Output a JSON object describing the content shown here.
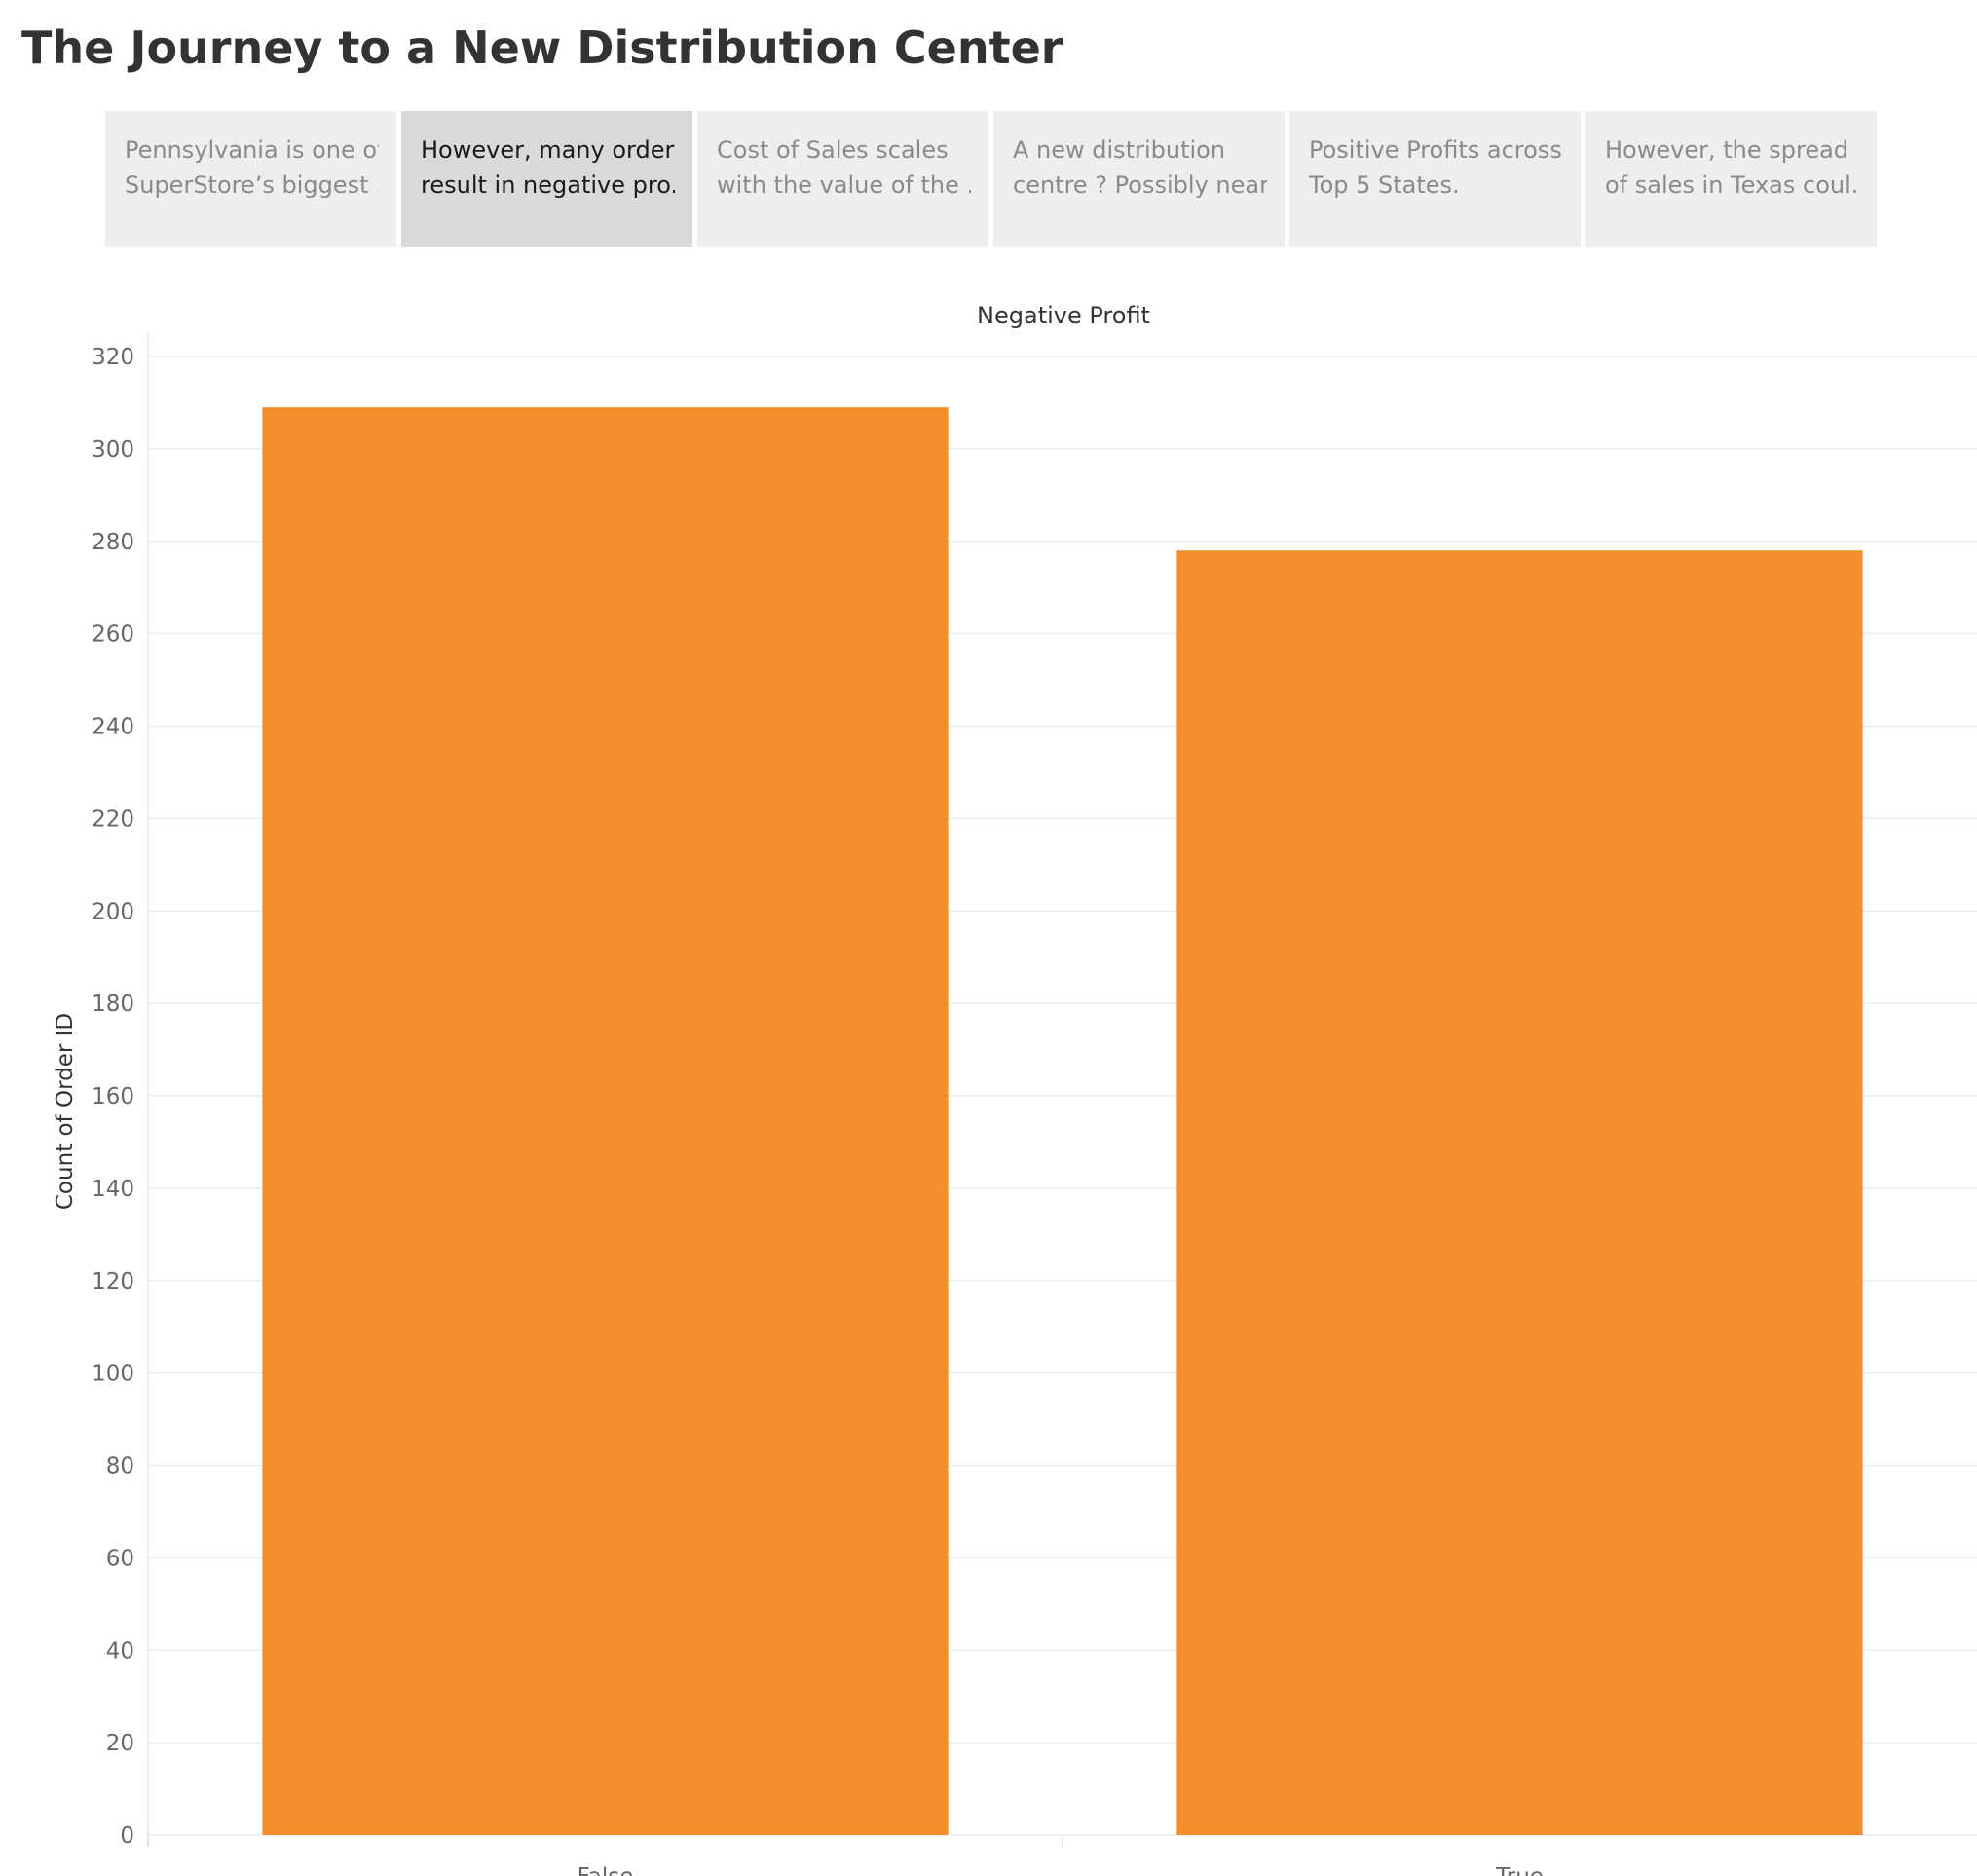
{
  "title": "The Journey to a New Distribution Center",
  "story_points": [
    {
      "line1": "Pennsylvania is one of",
      "line2": "SuperStore’s biggest ..",
      "active": false
    },
    {
      "line1": "However, many orders",
      "line2": "result in negative pro..",
      "active": true
    },
    {
      "line1": "Cost of Sales scales",
      "line2": "with the value of the ..",
      "active": false
    },
    {
      "line1": "A new distribution",
      "line2": "centre ? Possibly near..",
      "active": false
    },
    {
      "line1": "Positive Profits across",
      "line2": "Top 5 States.",
      "active": false
    },
    {
      "line1": "However, the spread",
      "line2": "of sales in Texas coul..",
      "active": false
    }
  ],
  "chart_data": {
    "type": "bar",
    "header": "Negative Profit",
    "categories": [
      "False",
      "True"
    ],
    "values": [
      309,
      278
    ],
    "ylabel": "Count of Order ID",
    "xlabel": "",
    "ylim": [
      0,
      320
    ],
    "yticks": [
      0,
      20,
      40,
      60,
      80,
      100,
      120,
      140,
      160,
      180,
      200,
      220,
      240,
      260,
      280,
      300,
      320
    ],
    "bar_color": "#f28e2b",
    "grid": true
  }
}
